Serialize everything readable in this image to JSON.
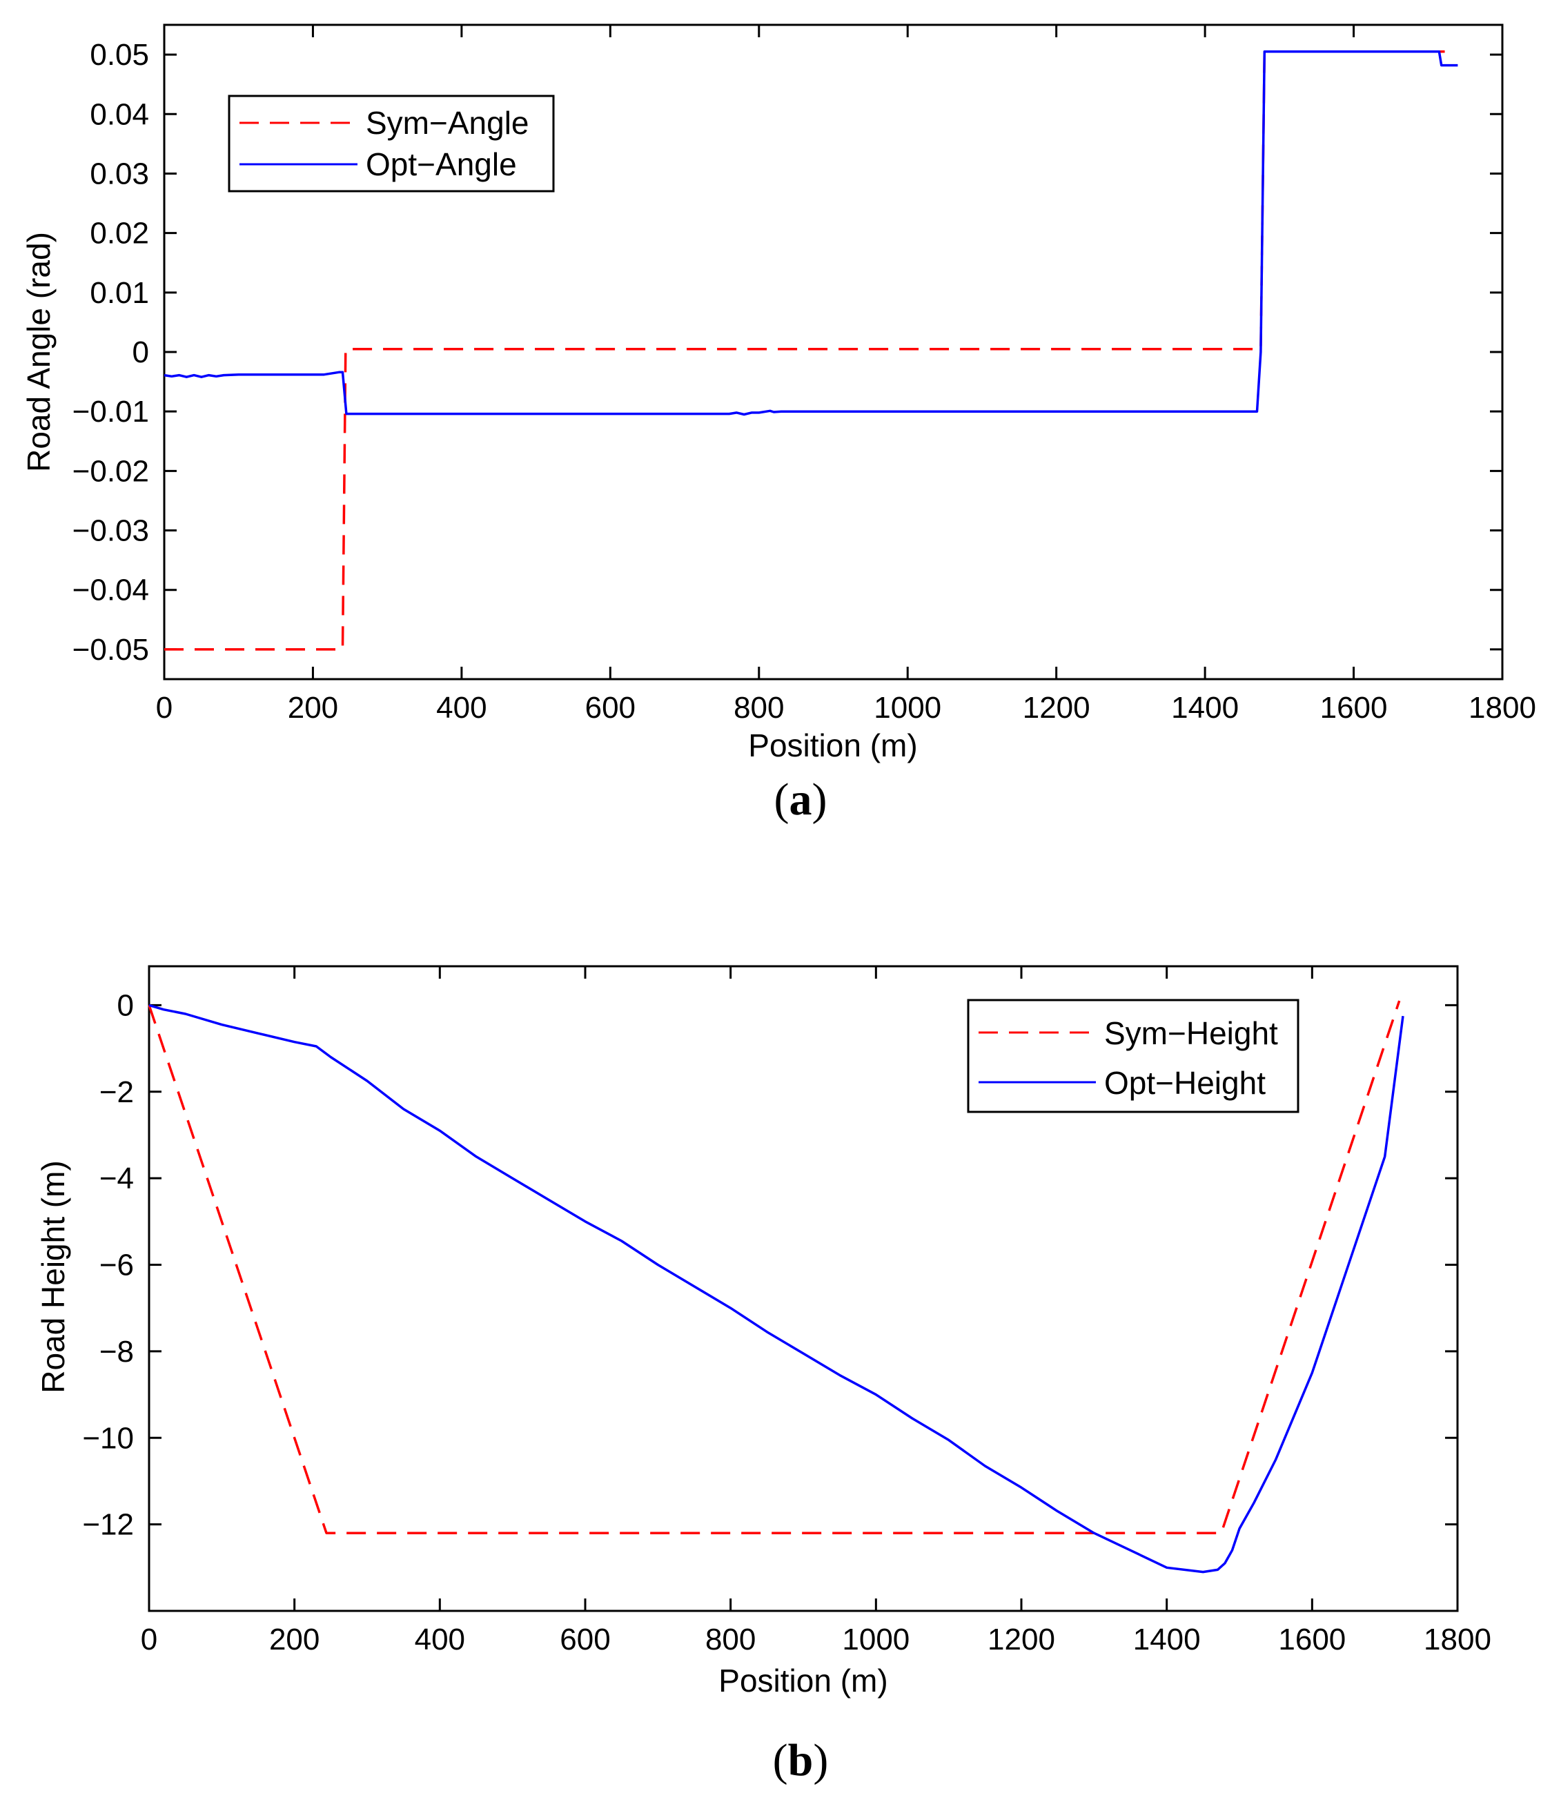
{
  "figure": {
    "colors": {
      "sym": "#ff0000",
      "opt": "#0000ff",
      "axis": "#000000",
      "background": "#ffffff"
    }
  },
  "chart_data": [
    {
      "id": "a",
      "type": "line",
      "caption_letter": "a",
      "xlabel": "Position (m)",
      "ylabel": "Road Angle (rad)",
      "xlim": [
        0,
        1800
      ],
      "ylim": [
        -0.055,
        0.055
      ],
      "xticks": [
        0,
        200,
        400,
        600,
        800,
        1000,
        1200,
        1400,
        1600,
        1800
      ],
      "xtick_labels": [
        "0",
        "200",
        "400",
        "600",
        "800",
        "1000",
        "1200",
        "1400",
        "1600",
        "1800"
      ],
      "yticks": [
        -0.05,
        -0.04,
        -0.03,
        -0.02,
        -0.01,
        0,
        0.01,
        0.02,
        0.03,
        0.04,
        0.05
      ],
      "ytick_labels": [
        "−0.05",
        "−0.04",
        "−0.03",
        "−0.02",
        "−0.01",
        "0",
        "0.01",
        "0.02",
        "0.03",
        "0.04",
        "0.05"
      ],
      "grid": false,
      "legend_position": "top-left",
      "series": [
        {
          "name": "Sym−Angle",
          "style": "dashed",
          "color": "#ff0000",
          "x": [
            0,
            240,
            244,
            1475,
            1480,
            1730
          ],
          "y": [
            -0.05,
            -0.05,
            0.0005,
            0.0005,
            0.0505,
            0.0505
          ]
        },
        {
          "name": "Opt−Angle",
          "style": "solid",
          "color": "#0000ff",
          "x": [
            0,
            10,
            20,
            30,
            40,
            50,
            60,
            70,
            80,
            100,
            150,
            200,
            215,
            235,
            240,
            245,
            400,
            600,
            760,
            770,
            780,
            790,
            800,
            815,
            820,
            830,
            1000,
            1200,
            1470,
            1475,
            1480,
            1700,
            1715,
            1718,
            1740
          ],
          "y": [
            -0.0039,
            -0.0041,
            -0.0039,
            -0.0042,
            -0.0039,
            -0.0042,
            -0.0039,
            -0.0041,
            -0.0039,
            -0.0038,
            -0.0038,
            -0.0038,
            -0.0038,
            -0.0034,
            -0.0034,
            -0.0104,
            -0.0104,
            -0.0104,
            -0.0104,
            -0.0102,
            -0.0105,
            -0.0102,
            -0.0102,
            -0.0099,
            -0.0101,
            -0.01,
            -0.01,
            -0.01,
            -0.01,
            0.0,
            0.0505,
            0.0505,
            0.0505,
            0.0482,
            0.0482
          ]
        }
      ]
    },
    {
      "id": "b",
      "type": "line",
      "caption_letter": "b",
      "xlabel": "Position (m)",
      "ylabel": "Road Height (m)",
      "xlim": [
        0,
        1800
      ],
      "ylim": [
        -14,
        0.9
      ],
      "xticks": [
        0,
        200,
        400,
        600,
        800,
        1000,
        1200,
        1400,
        1600,
        1800
      ],
      "xtick_labels": [
        "0",
        "200",
        "400",
        "600",
        "800",
        "1000",
        "1200",
        "1400",
        "1600",
        "1800"
      ],
      "yticks": [
        -12,
        -10,
        -8,
        -6,
        -4,
        -2,
        0
      ],
      "ytick_labels": [
        "−12",
        "−10",
        "−8",
        "−6",
        "−4",
        "−2",
        "0"
      ],
      "grid": false,
      "legend_position": "top-right",
      "series": [
        {
          "name": "Sym−Height",
          "style": "dashed",
          "color": "#ff0000",
          "x": [
            0,
            244,
            1475,
            1720
          ],
          "y": [
            0,
            -12.2,
            -12.2,
            0.1
          ]
        },
        {
          "name": "Opt−Height",
          "style": "solid",
          "color": "#0000ff",
          "x": [
            0,
            20,
            50,
            100,
            150,
            200,
            230,
            250,
            300,
            350,
            400,
            450,
            500,
            550,
            600,
            650,
            700,
            750,
            800,
            850,
            900,
            950,
            1000,
            1050,
            1100,
            1150,
            1200,
            1250,
            1300,
            1350,
            1400,
            1450,
            1470,
            1480,
            1490,
            1500,
            1520,
            1550,
            1600,
            1650,
            1700,
            1725
          ],
          "y": [
            0,
            -0.1,
            -0.2,
            -0.45,
            -0.65,
            -0.85,
            -0.95,
            -1.2,
            -1.75,
            -2.4,
            -2.9,
            -3.5,
            -4.0,
            -4.5,
            -5.0,
            -5.45,
            -6.0,
            -6.5,
            -7.0,
            -7.55,
            -8.05,
            -8.55,
            -9.0,
            -9.55,
            -10.05,
            -10.65,
            -11.15,
            -11.7,
            -12.2,
            -12.6,
            -13.0,
            -13.1,
            -13.05,
            -12.9,
            -12.6,
            -12.1,
            -11.5,
            -10.5,
            -8.5,
            -6.0,
            -3.5,
            -0.25
          ]
        }
      ]
    }
  ]
}
